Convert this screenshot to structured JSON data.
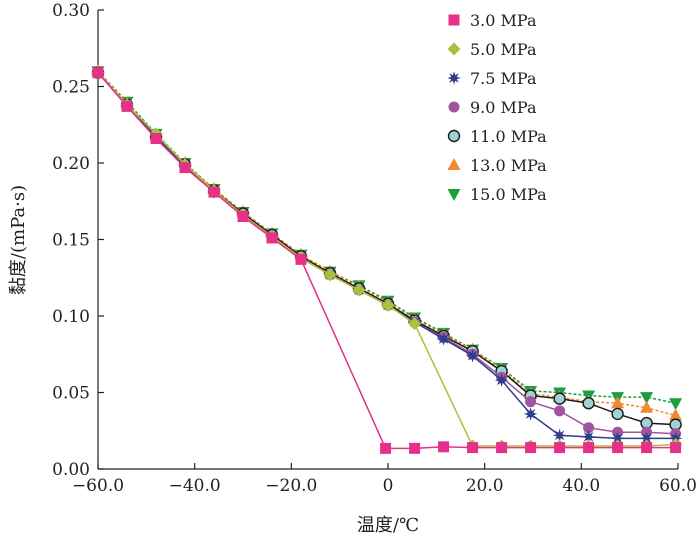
{
  "chart_data": {
    "type": "line",
    "xlabel": "温度/℃",
    "ylabel": "黏度/(mPa·s)",
    "xlim": [
      -60,
      60
    ],
    "ylim": [
      0,
      0.3
    ],
    "x_ticks": [
      -60,
      -40,
      -20,
      0,
      20,
      40,
      60
    ],
    "x_tick_labels": [
      "−60.0",
      "−40.0",
      "−20.0",
      "0",
      "20.0",
      "40.0",
      "60.0"
    ],
    "y_ticks": [
      0,
      0.05,
      0.1,
      0.15,
      0.2,
      0.25,
      0.3
    ],
    "y_tick_labels": [
      "0.00",
      "0.05",
      "0.10",
      "0.15",
      "0.20",
      "0.25",
      "0.30"
    ],
    "grid": false,
    "legend_position": "top-right",
    "series": [
      {
        "name": "3.0 MPa",
        "color": "#e6308a",
        "marker": "square",
        "dash": false,
        "points": [
          [
            -60,
            0.259
          ],
          [
            -54,
            0.237
          ],
          [
            -48,
            0.216
          ],
          [
            -42,
            0.197
          ],
          [
            -36,
            0.181
          ],
          [
            -30,
            0.165
          ],
          [
            -24,
            0.151
          ],
          [
            -18,
            0.137
          ],
          [
            -0.5,
            0.0135
          ],
          [
            5.5,
            0.0135
          ],
          [
            11.5,
            0.0145
          ],
          [
            17.5,
            0.014
          ],
          [
            23.5,
            0.014
          ],
          [
            29.5,
            0.014
          ],
          [
            35.5,
            0.014
          ],
          [
            41.5,
            0.014
          ],
          [
            47.5,
            0.014
          ],
          [
            53.5,
            0.014
          ],
          [
            59.5,
            0.014
          ]
        ]
      },
      {
        "name": "5.0 MPa",
        "color": "#a9c23c",
        "marker": "diamond",
        "dash": false,
        "points": [
          [
            -60,
            0.259
          ],
          [
            -54,
            0.238
          ],
          [
            -48,
            0.219
          ],
          [
            -42,
            0.199
          ],
          [
            -36,
            0.182
          ],
          [
            -30,
            0.166
          ],
          [
            -24,
            0.152
          ],
          [
            -18,
            0.138
          ],
          [
            -12,
            0.127
          ],
          [
            -6,
            0.117
          ],
          [
            0,
            0.107
          ],
          [
            5.5,
            0.095
          ],
          [
            17.5,
            0.015
          ],
          [
            23.5,
            0.015
          ],
          [
            29.5,
            0.015
          ],
          [
            35.5,
            0.015
          ],
          [
            41.5,
            0.015
          ],
          [
            47.5,
            0.015
          ],
          [
            53.5,
            0.015
          ],
          [
            59.5,
            0.016
          ]
        ]
      },
      {
        "name": "7.5 MPa",
        "color": "#2f3d8c",
        "marker": "star",
        "dash": false,
        "points": [
          [
            -60,
            0.259
          ],
          [
            -54,
            0.238
          ],
          [
            -48,
            0.217
          ],
          [
            -42,
            0.198
          ],
          [
            -36,
            0.181
          ],
          [
            -30,
            0.166
          ],
          [
            -24,
            0.152
          ],
          [
            -18,
            0.138
          ],
          [
            -12,
            0.127
          ],
          [
            -6,
            0.117
          ],
          [
            0,
            0.107
          ],
          [
            5.5,
            0.096
          ],
          [
            11.5,
            0.085
          ],
          [
            17.5,
            0.074
          ],
          [
            23.5,
            0.058
          ],
          [
            29.5,
            0.036
          ],
          [
            35.5,
            0.022
          ],
          [
            41.5,
            0.021
          ],
          [
            47.5,
            0.02
          ],
          [
            53.5,
            0.02
          ],
          [
            59.5,
            0.02
          ]
        ]
      },
      {
        "name": "9.0 MPa",
        "color": "#a0559e",
        "marker": "circle",
        "dash": false,
        "points": [
          [
            -60,
            0.259
          ],
          [
            -54,
            0.238
          ],
          [
            -48,
            0.217
          ],
          [
            -42,
            0.198
          ],
          [
            -36,
            0.181
          ],
          [
            -30,
            0.166
          ],
          [
            -24,
            0.152
          ],
          [
            -18,
            0.138
          ],
          [
            -12,
            0.127
          ],
          [
            -6,
            0.117
          ],
          [
            0,
            0.107
          ],
          [
            5.5,
            0.096
          ],
          [
            11.5,
            0.086
          ],
          [
            17.5,
            0.075
          ],
          [
            23.5,
            0.06
          ],
          [
            29.5,
            0.044
          ],
          [
            35.5,
            0.038
          ],
          [
            41.5,
            0.027
          ],
          [
            47.5,
            0.024
          ],
          [
            53.5,
            0.024
          ],
          [
            59.5,
            0.023
          ]
        ]
      },
      {
        "name": "11.0 MPa",
        "color": "#1a1a1a",
        "fill": "#9fd3d3",
        "marker": "circle",
        "dash": false,
        "points": [
          [
            -60,
            0.259
          ],
          [
            -54,
            0.238
          ],
          [
            -48,
            0.217
          ],
          [
            -42,
            0.199
          ],
          [
            -36,
            0.182
          ],
          [
            -30,
            0.167
          ],
          [
            -24,
            0.153
          ],
          [
            -18,
            0.139
          ],
          [
            -12,
            0.128
          ],
          [
            -6,
            0.118
          ],
          [
            0,
            0.108
          ],
          [
            5.5,
            0.097
          ],
          [
            11.5,
            0.087
          ],
          [
            17.5,
            0.077
          ],
          [
            23.5,
            0.064
          ],
          [
            29.5,
            0.048
          ],
          [
            35.5,
            0.046
          ],
          [
            41.5,
            0.043
          ],
          [
            47.5,
            0.036
          ],
          [
            53.5,
            0.03
          ],
          [
            59.5,
            0.029
          ]
        ]
      },
      {
        "name": "13.0 MPa",
        "color": "#f08a32",
        "marker": "triangle",
        "dash": true,
        "points": [
          [
            -60,
            0.26
          ],
          [
            -54,
            0.239
          ],
          [
            -48,
            0.218
          ],
          [
            -42,
            0.2
          ],
          [
            -36,
            0.183
          ],
          [
            -30,
            0.168
          ],
          [
            -24,
            0.154
          ],
          [
            -18,
            0.14
          ],
          [
            -12,
            0.129
          ],
          [
            -6,
            0.119
          ],
          [
            0,
            0.109
          ],
          [
            5.5,
            0.098
          ],
          [
            11.5,
            0.088
          ],
          [
            17.5,
            0.078
          ],
          [
            23.5,
            0.065
          ],
          [
            29.5,
            0.049
          ],
          [
            35.5,
            0.047
          ],
          [
            41.5,
            0.044
          ],
          [
            47.5,
            0.043
          ],
          [
            53.5,
            0.04
          ],
          [
            59.5,
            0.035
          ]
        ]
      },
      {
        "name": "15.0 MPa",
        "color": "#1e9e3e",
        "marker": "triangle-down",
        "dash": true,
        "points": [
          [
            -60,
            0.26
          ],
          [
            -54,
            0.24
          ],
          [
            -48,
            0.219
          ],
          [
            -42,
            0.2
          ],
          [
            -36,
            0.183
          ],
          [
            -30,
            0.168
          ],
          [
            -24,
            0.154
          ],
          [
            -18,
            0.14
          ],
          [
            -12,
            0.129
          ],
          [
            -6,
            0.12
          ],
          [
            0,
            0.11
          ],
          [
            5.5,
            0.099
          ],
          [
            11.5,
            0.089
          ],
          [
            17.5,
            0.078
          ],
          [
            23.5,
            0.066
          ],
          [
            29.5,
            0.051
          ],
          [
            35.5,
            0.05
          ],
          [
            41.5,
            0.048
          ],
          [
            47.5,
            0.047
          ],
          [
            53.5,
            0.047
          ],
          [
            59.5,
            0.043
          ]
        ]
      }
    ]
  }
}
